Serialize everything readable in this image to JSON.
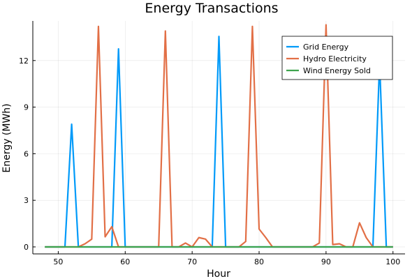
{
  "chart_data": {
    "type": "line",
    "title": "Energy Transactions",
    "xlabel": "Hour",
    "ylabel": "Energy (MWh)",
    "xlim": [
      46.2,
      101.8
    ],
    "ylim": [
      -0.45,
      14.55
    ],
    "xticks": [
      50,
      60,
      70,
      80,
      90,
      100
    ],
    "yticks": [
      0,
      3,
      6,
      9,
      12
    ],
    "grid": true,
    "legend_position": "top-right",
    "series": [
      {
        "name": "Grid Energy",
        "color": "#009af9",
        "x": [
          48,
          49,
          50,
          51,
          52,
          53,
          54,
          55,
          56,
          57,
          58,
          59,
          60,
          61,
          62,
          63,
          64,
          65,
          66,
          67,
          68,
          69,
          70,
          71,
          72,
          73,
          74,
          75,
          76,
          77,
          78,
          79,
          80,
          81,
          82,
          83,
          84,
          85,
          86,
          87,
          88,
          89,
          90,
          91,
          92,
          93,
          94,
          95,
          96,
          97,
          98,
          99,
          100
        ],
        "y": [
          0,
          0,
          0,
          0,
          7.9,
          0,
          0,
          0,
          0,
          0,
          0,
          12.75,
          0,
          0,
          0,
          0,
          0,
          0,
          0,
          0,
          0,
          0,
          0,
          0,
          0,
          0,
          13.55,
          0,
          0,
          0,
          0,
          0,
          0,
          0,
          0,
          0,
          0,
          0,
          0,
          0,
          0,
          0,
          0,
          0,
          0,
          0,
          0,
          0,
          0,
          0,
          11.9,
          0,
          0
        ]
      },
      {
        "name": "Hydro Electricity",
        "color": "#e26f46",
        "x": [
          48,
          49,
          50,
          51,
          52,
          53,
          54,
          55,
          56,
          57,
          58,
          59,
          60,
          61,
          62,
          63,
          64,
          65,
          66,
          67,
          68,
          69,
          70,
          71,
          72,
          73,
          74,
          75,
          76,
          77,
          78,
          79,
          80,
          81,
          82,
          83,
          84,
          85,
          86,
          87,
          88,
          89,
          90,
          91,
          92,
          93,
          94,
          95,
          96,
          97,
          98,
          99,
          100
        ],
        "y": [
          0,
          0,
          0,
          0,
          0,
          0,
          0.2,
          0.5,
          14.2,
          0.65,
          1.3,
          0,
          0,
          0,
          0,
          0,
          0,
          0,
          13.9,
          0,
          0,
          0.25,
          0,
          0.6,
          0.5,
          0,
          0,
          0,
          0,
          0,
          0.35,
          14.2,
          1.15,
          0.6,
          0,
          0,
          0,
          0,
          0,
          0,
          0,
          0.25,
          14.3,
          0.15,
          0.2,
          0,
          0,
          1.55,
          0.6,
          0,
          0,
          0,
          0
        ]
      },
      {
        "name": "Wind Energy Sold",
        "color": "#3ea44e",
        "x": [
          48,
          100
        ],
        "y": [
          0,
          0
        ]
      }
    ]
  }
}
